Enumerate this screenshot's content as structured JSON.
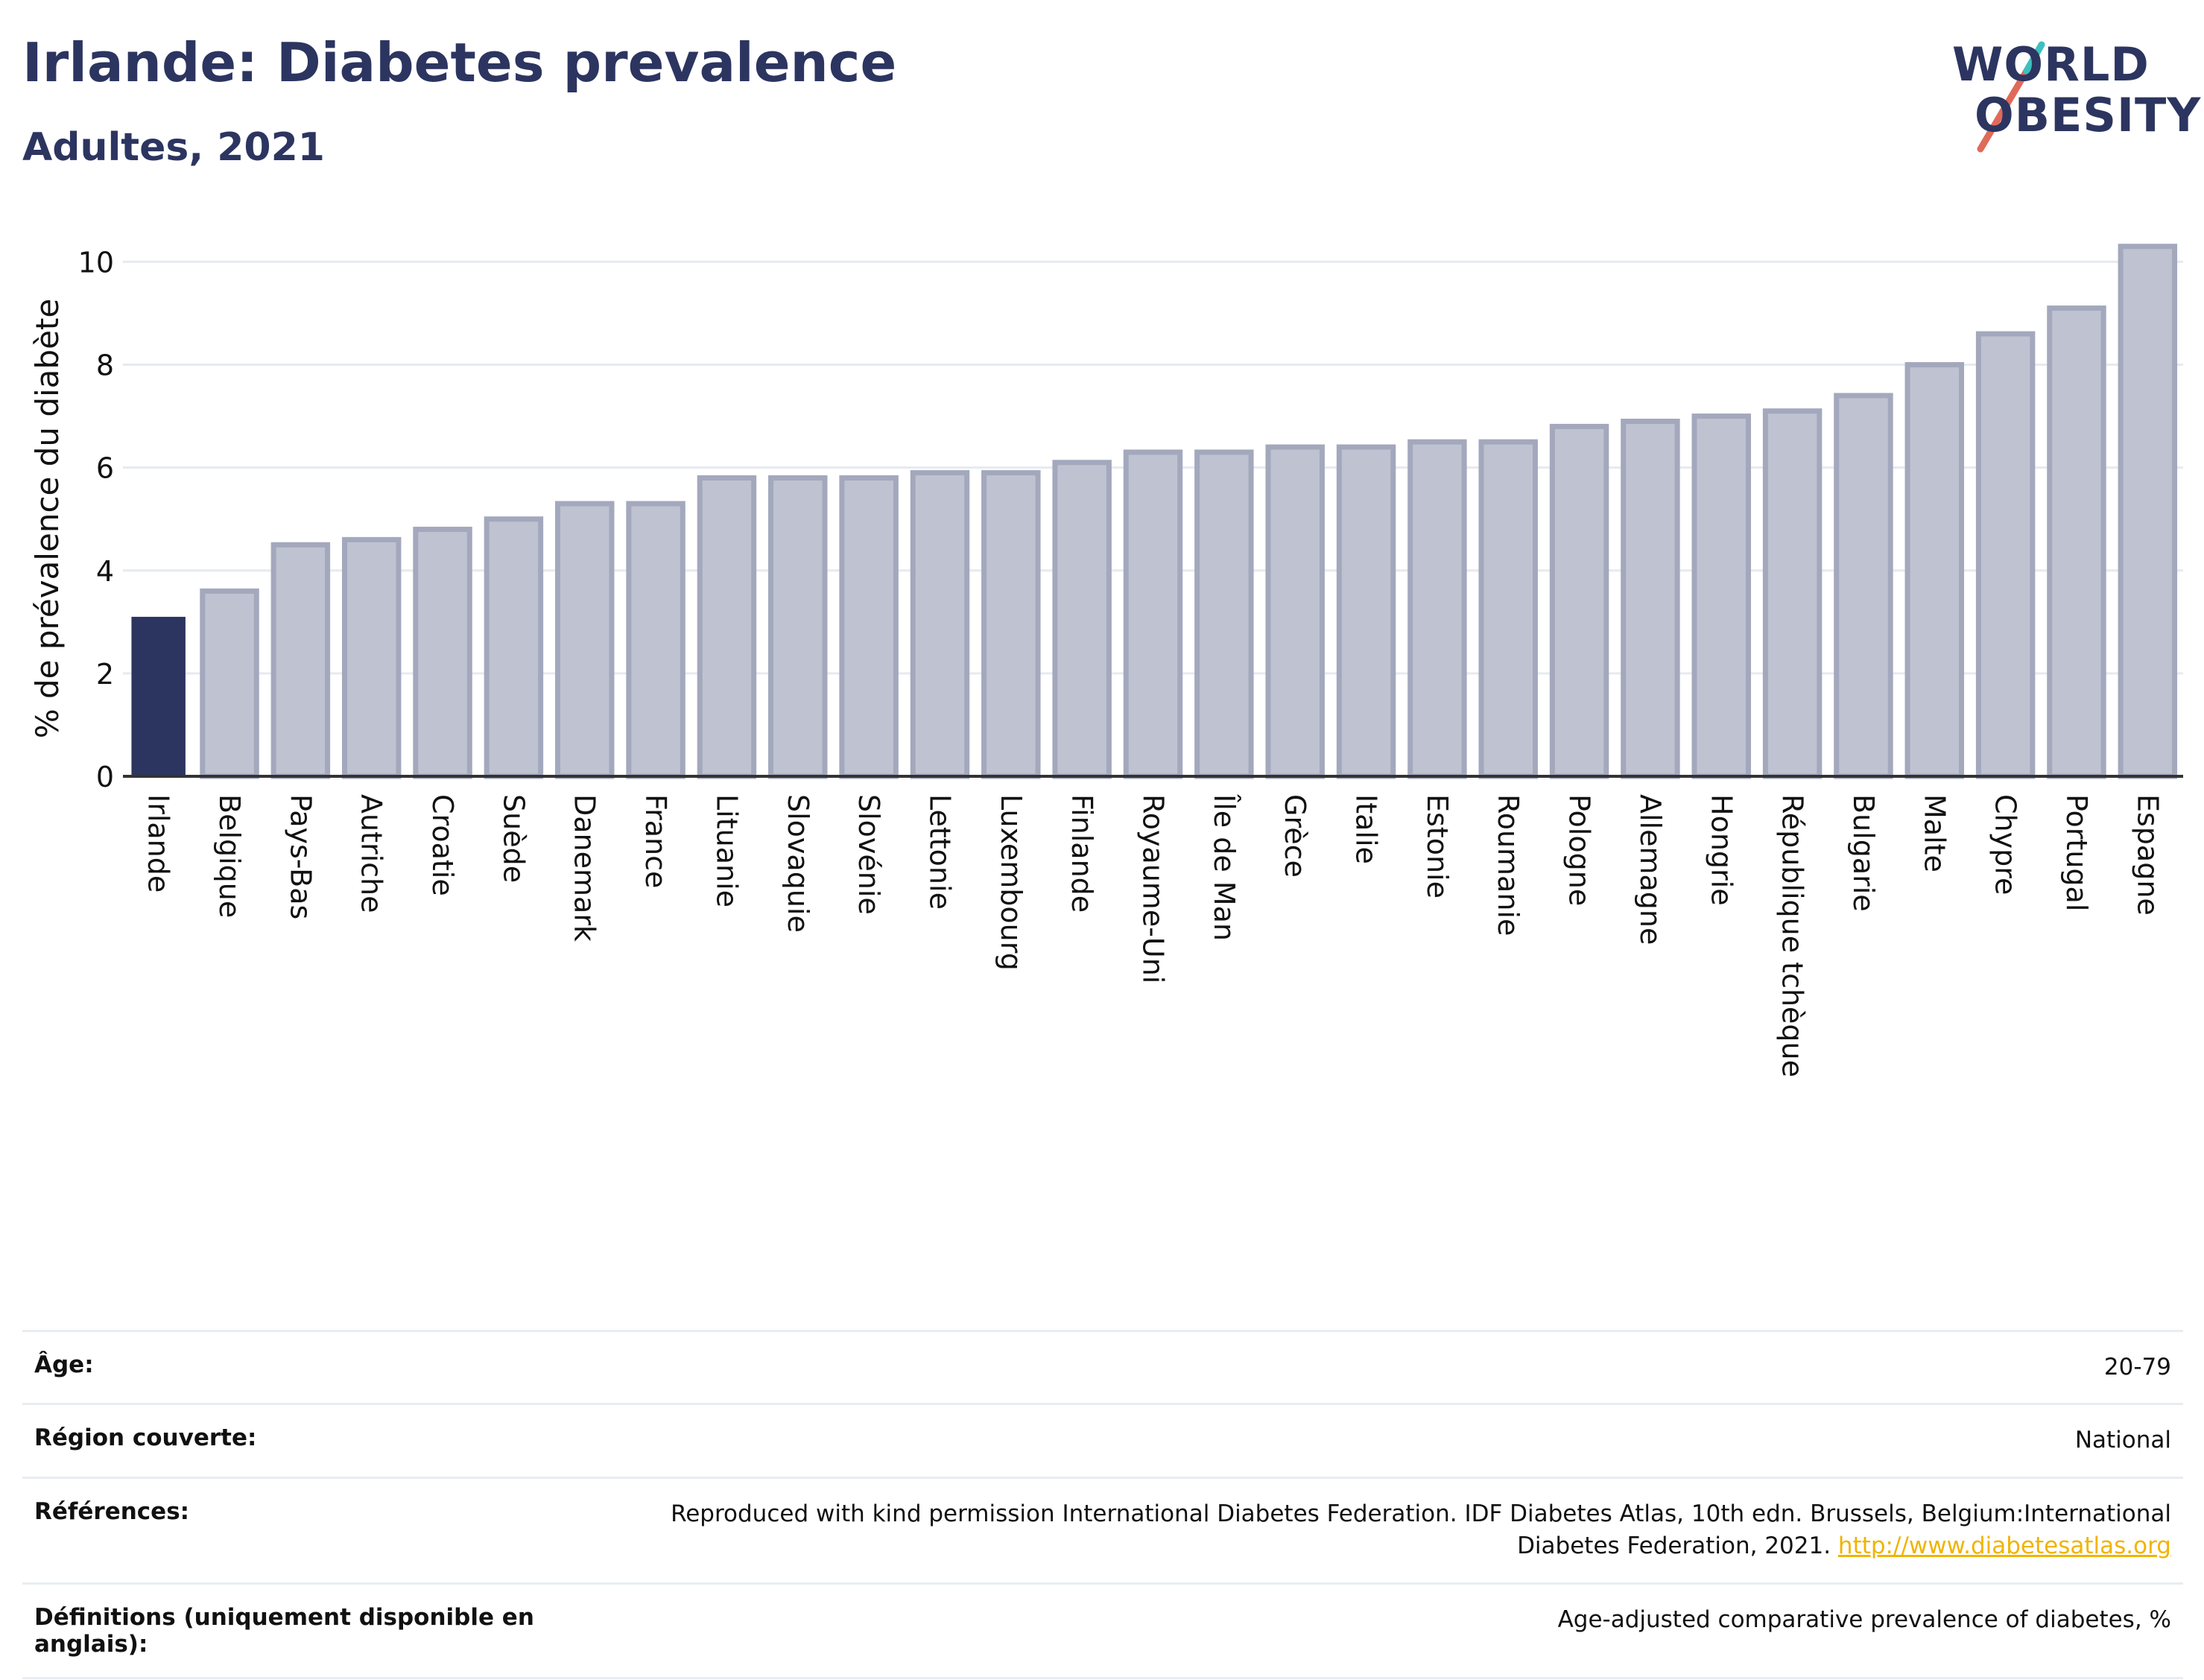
{
  "header": {
    "title": "Irlande: Diabetes prevalence",
    "subtitle": "Adultes, 2021"
  },
  "logo": {
    "line1": "WORLD",
    "line2": "OBESITY"
  },
  "chart_data": {
    "type": "bar",
    "ylabel": "% de prévalence du diabète",
    "ylim": [
      0,
      10.6
    ],
    "yticks": [
      0,
      2,
      4,
      6,
      8,
      10
    ],
    "grid": true,
    "categories": [
      "Irlande",
      "Belgique",
      "Pays-Bas",
      "Autriche",
      "Croatie",
      "Suède",
      "Danemark",
      "France",
      "Lituanie",
      "Slovaquie",
      "Slovénie",
      "Lettonie",
      "Luxembourg",
      "Finlande",
      "Royaume-Uni",
      "Île de Man",
      "Grèce",
      "Italie",
      "Estonie",
      "Roumanie",
      "Pologne",
      "Allemagne",
      "Hongrie",
      "République tchèque",
      "Bulgarie",
      "Malte",
      "Chypre",
      "Portugal",
      "Espagne"
    ],
    "values": [
      3.1,
      3.6,
      4.5,
      4.6,
      4.8,
      5.0,
      5.3,
      5.3,
      5.8,
      5.8,
      5.8,
      5.9,
      5.9,
      6.1,
      6.3,
      6.3,
      6.4,
      6.4,
      6.5,
      6.5,
      6.8,
      6.9,
      7.0,
      7.1,
      7.4,
      8.0,
      8.6,
      9.1,
      10.3
    ],
    "highlight": "Irlande",
    "colors": {
      "highlight": "#2c3560",
      "bar_fill": "#bfc2d0",
      "bar_stroke": "#a3a8bd"
    }
  },
  "meta": {
    "age_label": "Âge:",
    "age_value": "20-79",
    "region_label": "Région couverte:",
    "region_value": "National",
    "references_label": "Références:",
    "references_text": "Reproduced with kind permission International Diabetes Federation.  IDF Diabetes Atlas, 10th edn. Brussels, Belgium:International Diabetes Federation, 2021.",
    "references_link": "http://www.diabetesatlas.org",
    "definitions_label": "Définitions (uniquement disponible en anglais):",
    "definitions_value": "Age-adjusted comparative prevalence of diabetes, %"
  }
}
